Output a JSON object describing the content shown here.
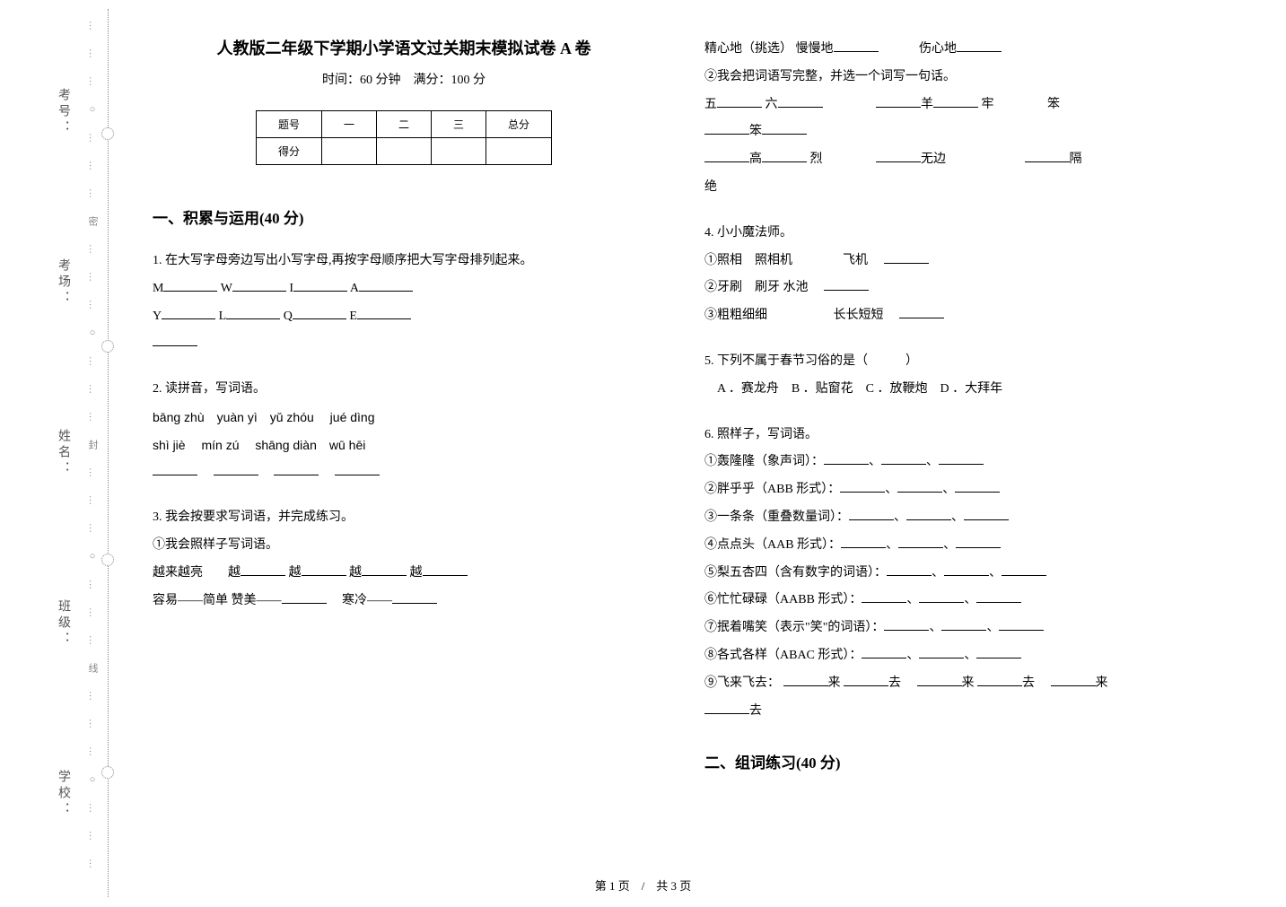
{
  "margin": {
    "labels": [
      "考号：",
      "考场：",
      "姓名：",
      "班级：",
      "学校："
    ],
    "dotted_text": "………○………密………○………封………○………线………○………"
  },
  "header": {
    "title": "人教版二年级下学期小学语文过关期末模拟试卷 A 卷",
    "subtitle": "时间：60 分钟　满分：100 分"
  },
  "score_table": {
    "row1": [
      "题号",
      "一",
      "二",
      "三",
      "总分"
    ],
    "row2_label": "得分"
  },
  "section1": {
    "header": "一、积累与运用(40 分)",
    "q1": {
      "text": "1. 在大写字母旁边写出小写字母,再按字母顺序把大写字母排列起来。",
      "letters_row1": [
        "M",
        "W",
        "I",
        "A"
      ],
      "letters_row2": [
        "Y",
        "L",
        "Q",
        "E"
      ]
    },
    "q2": {
      "text": "2. 读拼音，写词语。",
      "pinyin_row1": "bāng zhù　yuàn yì　yǔ zhóu　 jué dìng",
      "pinyin_row2": "shì jiè　 mín zú　 shāng diàn　wū hēi"
    },
    "q3": {
      "text": "3. 我会按要求写词语，并完成练习。",
      "sub1": "①我会照样子写词语。",
      "line1a": "越来越亮　　越",
      "line1b": "越",
      "line1c": "越",
      "line1d": "越",
      "line2a": "容易——简单 赞美——",
      "line2b": "寒冷——",
      "line3a": "精心地（挑选） 慢慢地",
      "line3b": "伤心地",
      "sub2": "②我会把词语写完整，并选一个词写一句话。",
      "line4a": "五",
      "line4b": "六",
      "line4c": "羊",
      "line4d": "牢",
      "line4e": "笨",
      "line5a": "笨",
      "line6a": "高",
      "line6b": "烈",
      "line6c": "无边",
      "line6d": "隔",
      "line7a": "绝"
    },
    "q4": {
      "text": "4. 小小魔法师。",
      "line1a": "①照相　照相机　　　　飞机",
      "line2a": "②牙刷　刷牙 水池",
      "line3a": "③粗粗细细",
      "line3b": "长长短短"
    },
    "q5": {
      "text": "5. 下列不属于春节习俗的是（　　　）",
      "options": "　A ．赛龙舟　B ．贴窗花　C ．放鞭炮　D ．大拜年"
    },
    "q6": {
      "text": "6. 照样子，写词语。",
      "items": [
        "①轰隆隆（象声词）：",
        "②胖乎乎（ABB 形式）：",
        "③一条条（重叠数量词）：",
        "④点点头（AAB 形式）：",
        "⑤梨五杏四（含有数字的词语）：",
        "⑥忙忙碌碌（AABB 形式）：",
        "⑦抿着嘴笑（表示\"笑\"的词语）：",
        "⑧各式各样（ABAC 形式）："
      ],
      "item9a": "⑨飞来飞去：",
      "item9b": "来",
      "item9c": "去",
      "item9d": "来",
      "item9e": "去",
      "item9f": "来",
      "item9g": "去"
    }
  },
  "section2": {
    "header": "二、组词练习(40 分)"
  },
  "footer": "第 1 页　/　共 3 页",
  "colors": {
    "text": "#000000",
    "dotted": "#888888",
    "margin_label": "#555555",
    "background": "#ffffff"
  }
}
